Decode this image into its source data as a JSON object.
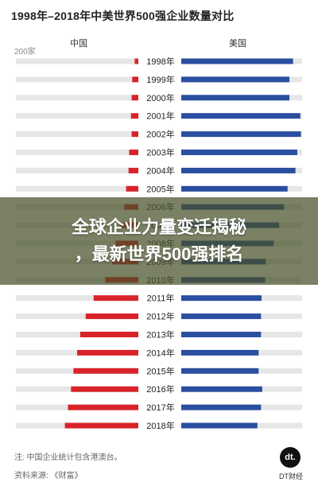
{
  "title": "1998年–2018年中美世界500强企业数量对比",
  "chart_data": {
    "type": "bar",
    "title": "1998年–2018年中美世界500强企业数量对比",
    "scale_label": "200家",
    "series": [
      {
        "name": "中国",
        "color": "#d8232a",
        "values": [
          6,
          10,
          11,
          12,
          11,
          15,
          16,
          20,
          23,
          30,
          37,
          43,
          54,
          73,
          86,
          95,
          100,
          106,
          110,
          115,
          120
        ]
      },
      {
        "name": "美国",
        "color": "#2a4ea0",
        "values": [
          185,
          179,
          179,
          197,
          198,
          192,
          189,
          176,
          170,
          162,
          153,
          140,
          139,
          133,
          132,
          132,
          128,
          128,
          134,
          132,
          126
        ]
      }
    ],
    "categories": [
      "1998年",
      "1999年",
      "2000年",
      "2001年",
      "2002年",
      "2003年",
      "2004年",
      "2005年",
      "2006年",
      "2007年",
      "2008年",
      "2009年",
      "2010年",
      "2011年",
      "2012年",
      "2013年",
      "2014年",
      "2015年",
      "2016年",
      "2017年",
      "2018年"
    ],
    "xlim": [
      0,
      200
    ]
  },
  "overlay": {
    "line1": "全球企业力量变迁揭秘",
    "line2": "，最新世界500强排名"
  },
  "notes": {
    "note1": "注: 中国企业统计包含港澳台。",
    "source": "资料来源: 《财富》"
  },
  "logo": {
    "mark": "dt.",
    "text": "DT财经"
  }
}
